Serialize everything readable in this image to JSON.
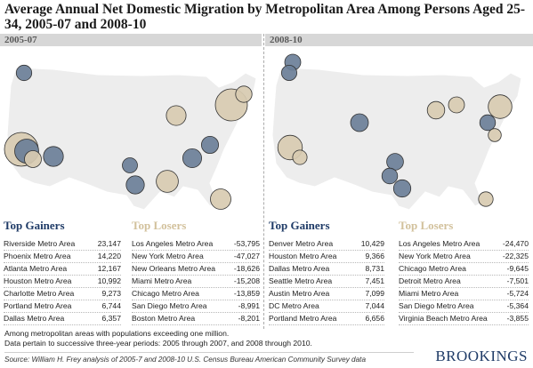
{
  "title": "Average Annual Net Domestic Migration by Metropolitan Area Among Persons Aged 25-34, 2005-07 and 2008-10",
  "colors": {
    "gainer": "#6b7f98",
    "loser": "#d8cbb1",
    "land": "#ededed",
    "gainer_header": "#1f3b67",
    "loser_header": "#d2c19c"
  },
  "panels": [
    {
      "period": "2005-07",
      "gainers_header": "Top Gainers",
      "losers_header": "Top Losers",
      "gainers": [
        {
          "name": "Riverside Metro Area",
          "value": "23,147"
        },
        {
          "name": "Phoenix Metro Area",
          "value": "14,220"
        },
        {
          "name": "Atlanta Metro Area",
          "value": "12,167"
        },
        {
          "name": "Houston Metro Area",
          "value": "10,992"
        },
        {
          "name": "Charlotte Metro Area",
          "value": "9,273"
        },
        {
          "name": "Portland Metro Area",
          "value": "6,744"
        },
        {
          "name": "Dallas Metro Area",
          "value": "6,357"
        }
      ],
      "losers": [
        {
          "name": "Los Angeles Metro Area",
          "value": "-53,795"
        },
        {
          "name": "New York Metro Area",
          "value": "-47,027"
        },
        {
          "name": "New Orleans Metro Area",
          "value": "-18,626"
        },
        {
          "name": "Miami Metro Area",
          "value": "-15,208"
        },
        {
          "name": "Chicago Metro Area",
          "value": "-13,859"
        },
        {
          "name": "San Diego Metro Area",
          "value": "-8,991"
        },
        {
          "name": "Boston Metro Area",
          "value": "-8,201"
        }
      ]
    },
    {
      "period": "2008-10",
      "gainers_header": "Top Gainers",
      "losers_header": "Top Losers",
      "gainers": [
        {
          "name": "Denver Metro Area",
          "value": "10,429"
        },
        {
          "name": "Houston Metro Area",
          "value": "9,366"
        },
        {
          "name": "Dallas Metro Area",
          "value": "8,731"
        },
        {
          "name": "Seattle Metro Area",
          "value": "7,451"
        },
        {
          "name": "Austin Metro Area",
          "value": "7,099"
        },
        {
          "name": "DC Metro Area",
          "value": "7,044"
        },
        {
          "name": "Portland Metro Area",
          "value": "6,656"
        }
      ],
      "losers": [
        {
          "name": "Los Angeles Metro Area",
          "value": "-24,470"
        },
        {
          "name": "New York Metro Area",
          "value": "-22,325"
        },
        {
          "name": "Chicago Metro Area",
          "value": "-9,645"
        },
        {
          "name": "Detroit Metro Area",
          "value": "-7,501"
        },
        {
          "name": "Miami Metro Area",
          "value": "-5,724"
        },
        {
          "name": "San Diego Metro Area",
          "value": "-5,364"
        },
        {
          "name": "Virginia Beach Metro Area",
          "value": "-3,855"
        }
      ]
    }
  ],
  "notes": [
    "Among metropolitan areas with populations exceeding one million.",
    "Data pertain to successive three-year periods: 2005 through 2007, and 2008 through 2010."
  ],
  "source": "Source: William H. Frey analysis of 2005-7 and 2008-10 U.S. Census Bureau American Community Survey data",
  "brand": "BROOKINGS"
}
